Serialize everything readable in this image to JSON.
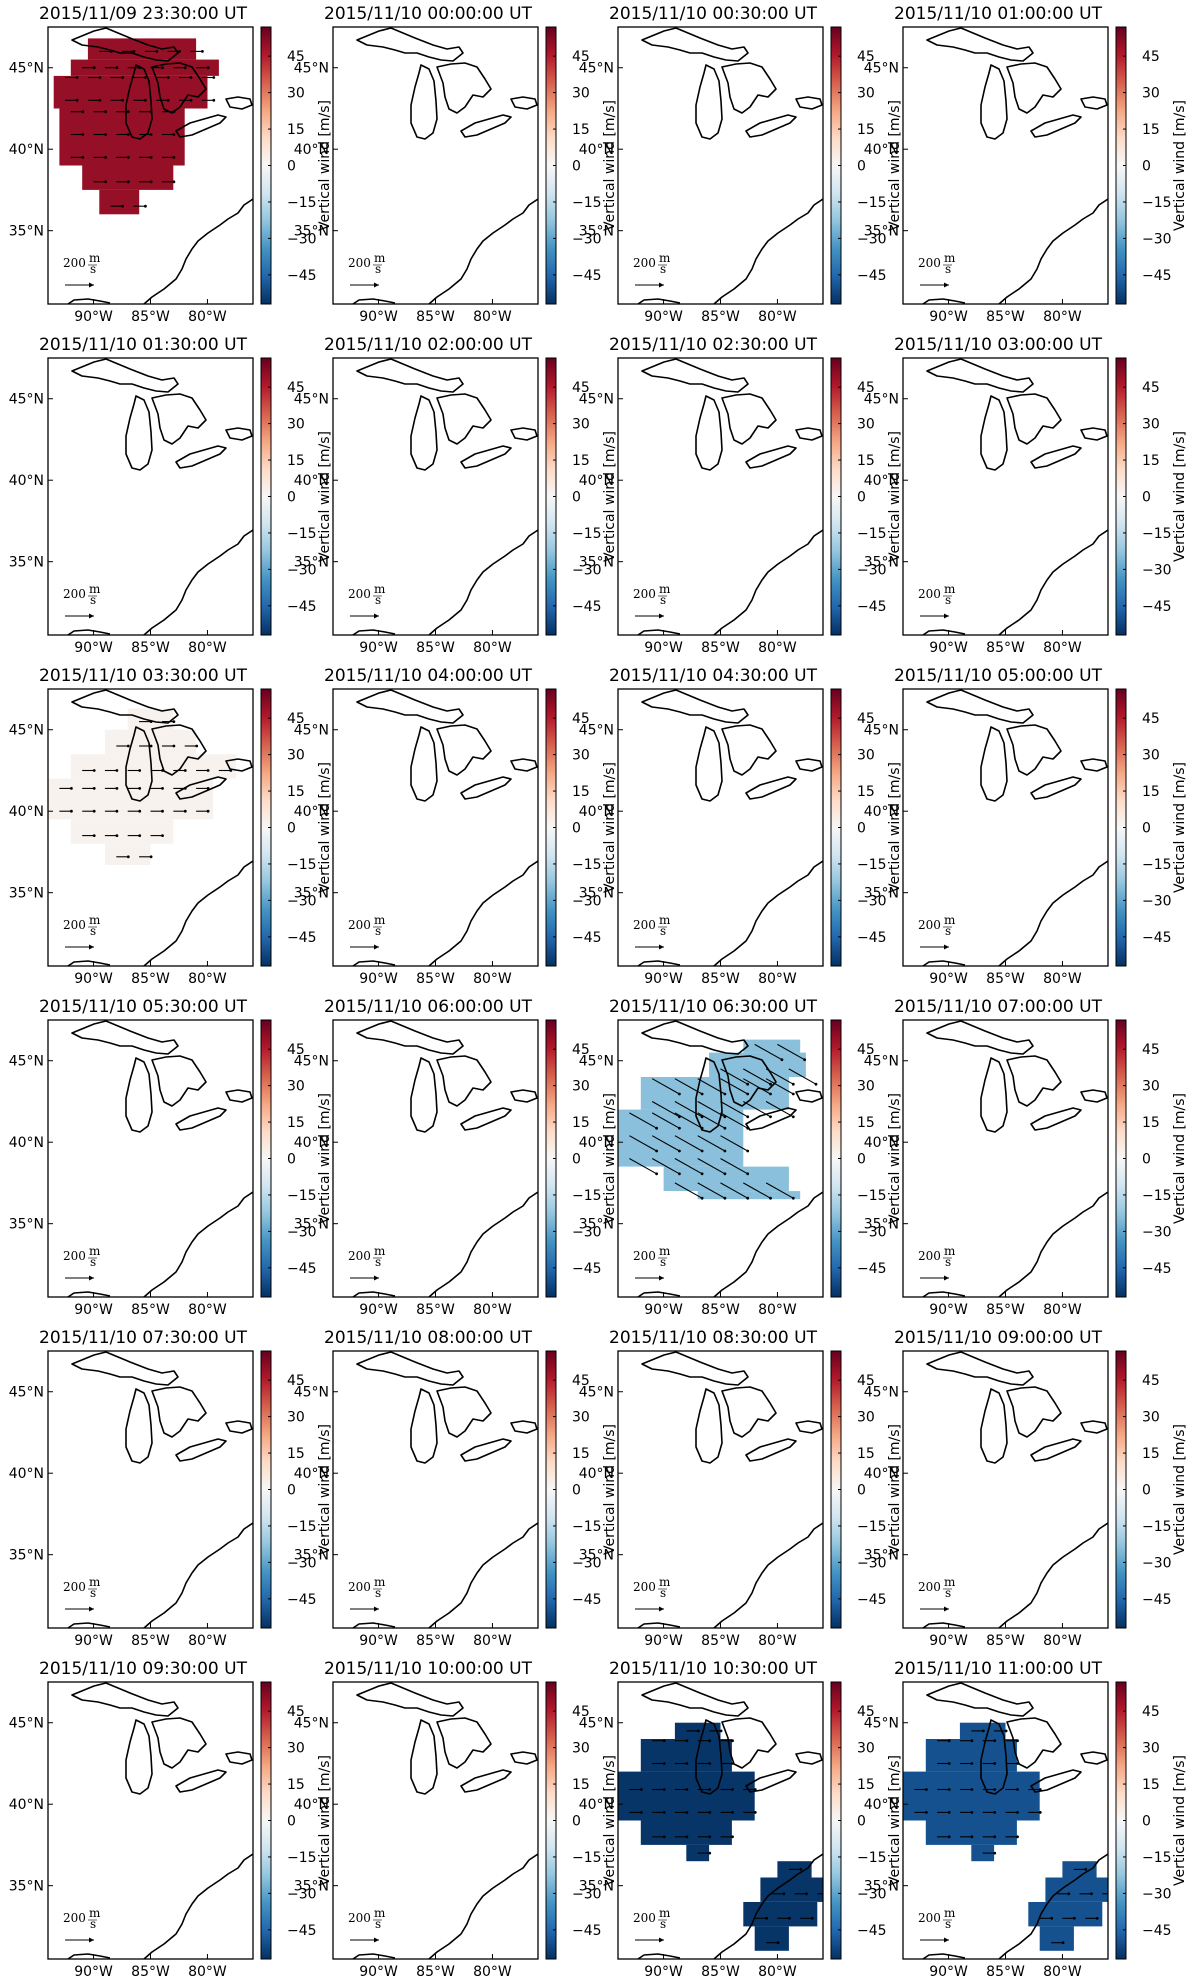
{
  "colorbar": {
    "label": "Vertical wind [m/s]",
    "ticks": [
      "45",
      "30",
      "15",
      "0",
      "−15",
      "−30",
      "−45"
    ],
    "tick_values": [
      45,
      30,
      15,
      0,
      -15,
      -30,
      -45
    ],
    "range": [
      -57,
      57
    ],
    "colormap": "RdBu_r",
    "stops": [
      "#053061",
      "#2166ac",
      "#4393c3",
      "#92c5de",
      "#d1e5f0",
      "#f7f7f7",
      "#fddbc7",
      "#f4a582",
      "#d6604d",
      "#b2182b",
      "#67001f"
    ]
  },
  "axes": {
    "lat_ticks": [
      "45°N",
      "40°N",
      "35°N"
    ],
    "lon_ticks": [
      "90°W",
      "85°W",
      "80°W"
    ],
    "lon_range": [
      -94,
      -76
    ],
    "lat_range": [
      30.5,
      47.5
    ]
  },
  "quiver_key": {
    "value": "200",
    "unit_num": "m",
    "unit_den": "s"
  },
  "colors": {
    "coast": "#000000",
    "frame": "#000000",
    "quiver": "#000000"
  },
  "chart_data": [
    {
      "type": "heatmap",
      "title": "2015/11/09 23:30:00 UT",
      "value": 50,
      "region": "north",
      "vector_dir": "east"
    },
    {
      "type": "heatmap",
      "title": "2015/11/10 00:00:00 UT",
      "value": null
    },
    {
      "type": "heatmap",
      "title": "2015/11/10 00:30:00 UT",
      "value": null
    },
    {
      "type": "heatmap",
      "title": "2015/11/10 01:00:00 UT",
      "value": null
    },
    {
      "type": "heatmap",
      "title": "2015/11/10 01:30:00 UT",
      "value": null
    },
    {
      "type": "heatmap",
      "title": "2015/11/10 02:00:00 UT",
      "value": null
    },
    {
      "type": "heatmap",
      "title": "2015/11/10 02:30:00 UT",
      "value": null
    },
    {
      "type": "heatmap",
      "title": "2015/11/10 03:00:00 UT",
      "value": null
    },
    {
      "type": "heatmap",
      "title": "2015/11/10 03:30:00 UT",
      "value": 2,
      "region": "west",
      "vector_dir": "east"
    },
    {
      "type": "heatmap",
      "title": "2015/11/10 04:00:00 UT",
      "value": null
    },
    {
      "type": "heatmap",
      "title": "2015/11/10 04:30:00 UT",
      "value": null
    },
    {
      "type": "heatmap",
      "title": "2015/11/10 05:00:00 UT",
      "value": null
    },
    {
      "type": "heatmap",
      "title": "2015/11/10 05:30:00 UT",
      "value": null
    },
    {
      "type": "heatmap",
      "title": "2015/11/10 06:00:00 UT",
      "value": null
    },
    {
      "type": "heatmap",
      "title": "2015/11/10 06:30:00 UT",
      "value": -24,
      "region": "diagonal",
      "vector_dir": "southeast"
    },
    {
      "type": "heatmap",
      "title": "2015/11/10 07:00:00 UT",
      "value": null
    },
    {
      "type": "heatmap",
      "title": "2015/11/10 07:30:00 UT",
      "value": null
    },
    {
      "type": "heatmap",
      "title": "2015/11/10 08:00:00 UT",
      "value": null
    },
    {
      "type": "heatmap",
      "title": "2015/11/10 08:30:00 UT",
      "value": null
    },
    {
      "type": "heatmap",
      "title": "2015/11/10 09:00:00 UT",
      "value": null
    },
    {
      "type": "heatmap",
      "title": "2015/11/10 09:30:00 UT",
      "value": null
    },
    {
      "type": "heatmap",
      "title": "2015/11/10 10:00:00 UT",
      "value": null
    },
    {
      "type": "heatmap",
      "title": "2015/11/10 10:30:00 UT",
      "value": -56,
      "region": "two_blobs",
      "vector_dir": "east"
    },
    {
      "type": "heatmap",
      "title": "2015/11/10 11:00:00 UT",
      "value": -50,
      "region": "two_blobs",
      "vector_dir": "east"
    }
  ]
}
